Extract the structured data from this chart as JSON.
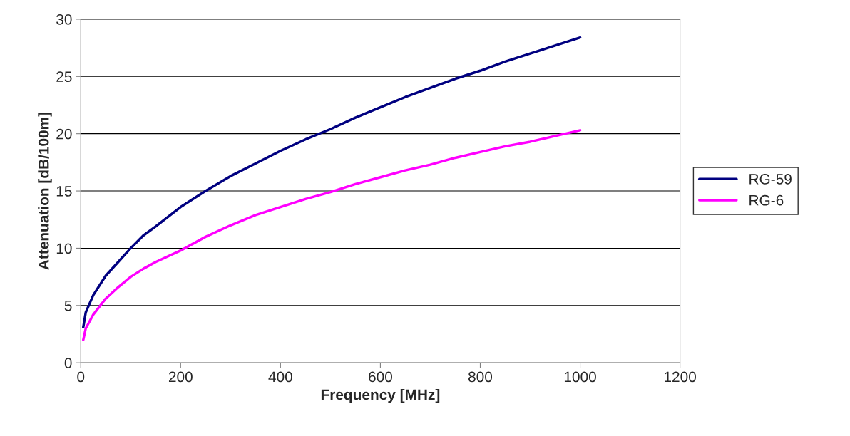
{
  "chart_data": {
    "type": "line",
    "xlabel": "Frequency [MHz]",
    "ylabel": "Attenuation [dB/100m]",
    "xlim": [
      0,
      1200
    ],
    "xticks": [
      0,
      200,
      400,
      600,
      800,
      1000,
      1200
    ],
    "ylim": [
      0,
      30
    ],
    "yticks": [
      0,
      5,
      10,
      15,
      20,
      25,
      30
    ],
    "grid": "y",
    "legend": "right",
    "marker": "none",
    "line_style": "solid",
    "series": [
      {
        "name": "RG-59",
        "color": "#000080",
        "x": [
          5,
          10,
          25,
          50,
          75,
          100,
          125,
          150,
          200,
          250,
          300,
          350,
          400,
          450,
          500,
          550,
          600,
          650,
          700,
          750,
          800,
          850,
          900,
          950,
          1000
        ],
        "values": [
          3.1,
          4.4,
          5.9,
          7.6,
          8.8,
          10.0,
          11.1,
          11.9,
          13.6,
          15.0,
          16.3,
          17.4,
          18.5,
          19.5,
          20.4,
          21.4,
          22.3,
          23.2,
          24.0,
          24.8,
          25.5,
          26.3,
          27.0,
          27.7,
          28.4
        ]
      },
      {
        "name": "RG-6",
        "color": "#ff00ff",
        "x": [
          5,
          10,
          25,
          50,
          75,
          100,
          125,
          150,
          200,
          250,
          300,
          350,
          400,
          450,
          500,
          550,
          600,
          650,
          700,
          750,
          800,
          850,
          900,
          950,
          1000
        ],
        "values": [
          2.0,
          3.0,
          4.2,
          5.6,
          6.6,
          7.5,
          8.2,
          8.8,
          9.8,
          11.0,
          12.0,
          12.9,
          13.6,
          14.3,
          14.9,
          15.6,
          16.2,
          16.8,
          17.3,
          17.9,
          18.4,
          18.9,
          19.3,
          19.8,
          20.3
        ]
      }
    ]
  }
}
